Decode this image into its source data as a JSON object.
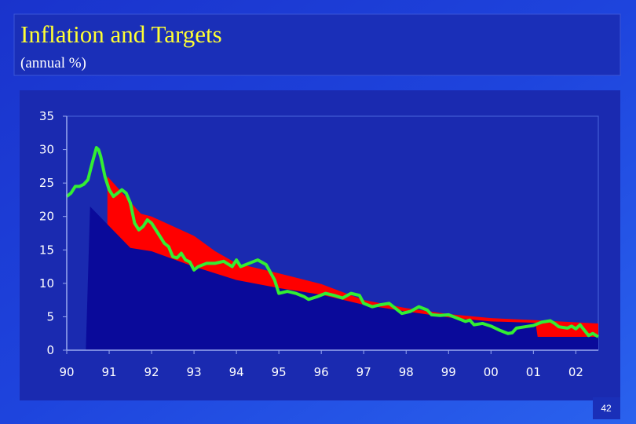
{
  "page_number": "42",
  "chart_data": {
    "type": "line",
    "title": "Inflation and Targets",
    "subtitle": "(annual %)",
    "xlim": [
      1990,
      2002.53
    ],
    "ylim": [
      0,
      35
    ],
    "xticks": [
      {
        "value": 1990,
        "label": "90"
      },
      {
        "value": 1991,
        "label": "91"
      },
      {
        "value": 1992,
        "label": "92"
      },
      {
        "value": 1993,
        "label": "93"
      },
      {
        "value": 1994,
        "label": "94"
      },
      {
        "value": 1995,
        "label": "95"
      },
      {
        "value": 1996,
        "label": "96"
      },
      {
        "value": 1997,
        "label": "97"
      },
      {
        "value": 1998,
        "label": "98"
      },
      {
        "value": 1999,
        "label": "99"
      },
      {
        "value": 2000,
        "label": "00"
      },
      {
        "value": 2001,
        "label": "01"
      },
      {
        "value": 2002,
        "label": "02"
      }
    ],
    "yticks": [
      0,
      5,
      10,
      15,
      20,
      25,
      30,
      35
    ],
    "series": [
      {
        "style": "area",
        "color": "#ff0000",
        "x": [
          1990.95,
          1990.96,
          1991.75,
          1992,
          1993,
          1993.5,
          1994,
          1995,
          1996,
          1997,
          1998,
          1999,
          2000,
          2001,
          2002.53
        ],
        "values": [
          0,
          26,
          20.4,
          20,
          17.1,
          14.8,
          13,
          11.5,
          9.9,
          7.5,
          6.3,
          5.4,
          4.8,
          4.5,
          4
        ]
      },
      {
        "style": "area",
        "color": "#0a0a9a",
        "x": [
          1990.45,
          1990.55,
          1991.5,
          1992,
          1993,
          1994,
          1995,
          1996,
          1997,
          1998,
          1999,
          2000,
          2001.05,
          2001.1,
          2002.53
        ],
        "values": [
          0,
          21.5,
          15.3,
          14.8,
          12.5,
          10.5,
          9.3,
          8.3,
          6.8,
          5.8,
          4.9,
          4.3,
          4.1,
          2,
          2
        ]
      },
      {
        "style": "line",
        "color": "#33ee33",
        "x": [
          1990.0,
          1990.1,
          1990.2,
          1990.3,
          1990.4,
          1990.5,
          1990.6,
          1990.7,
          1990.75,
          1990.8,
          1990.9,
          1991.0,
          1991.1,
          1991.2,
          1991.3,
          1991.4,
          1991.5,
          1991.6,
          1991.7,
          1991.8,
          1991.9,
          1992.0,
          1992.1,
          1992.2,
          1992.3,
          1992.4,
          1992.5,
          1992.6,
          1992.7,
          1992.8,
          1992.9,
          1993.0,
          1993.1,
          1993.3,
          1993.5,
          1993.7,
          1993.9,
          1994.0,
          1994.1,
          1994.3,
          1994.5,
          1994.7,
          1994.9,
          1995.0,
          1995.2,
          1995.4,
          1995.6,
          1995.7,
          1995.9,
          1996.1,
          1996.3,
          1996.5,
          1996.7,
          1996.9,
          1997.0,
          1997.2,
          1997.4,
          1997.6,
          1997.8,
          1997.9,
          1998.1,
          1998.3,
          1998.5,
          1998.6,
          1998.8,
          1999.0,
          1999.2,
          1999.4,
          1999.5,
          1999.6,
          1999.8,
          2000.0,
          2000.2,
          2000.4,
          2000.5,
          2000.6,
          2000.8,
          2001.0,
          2001.2,
          2001.4,
          2001.5,
          2001.6,
          2001.8,
          2001.9,
          2002.0,
          2002.1,
          2002.2,
          2002.3,
          2002.4,
          2002.53
        ],
        "values": [
          23,
          23.5,
          24.5,
          24.5,
          24.8,
          25.5,
          28,
          30.3,
          30,
          29,
          26,
          24,
          23,
          23.5,
          24,
          23.5,
          22,
          19,
          18,
          18.5,
          19.5,
          19,
          18,
          17,
          16,
          15.5,
          14,
          13.8,
          14.5,
          13.5,
          13.2,
          12,
          12.5,
          13,
          13,
          13.3,
          12.5,
          13.5,
          12.5,
          13,
          13.5,
          12.8,
          10.5,
          8.5,
          8.8,
          8.5,
          8,
          7.6,
          8,
          8.5,
          8.2,
          7.8,
          8.5,
          8.2,
          7,
          6.5,
          6.8,
          7,
          6,
          5.5,
          5.8,
          6.5,
          6,
          5.3,
          5.2,
          5.3,
          4.8,
          4.3,
          4.5,
          3.8,
          4,
          3.6,
          3,
          2.5,
          2.6,
          3.3,
          3.5,
          3.7,
          4.2,
          4.4,
          4,
          3.5,
          3.3,
          3.6,
          3.2,
          3.8,
          3,
          2.2,
          2.5,
          2.0
        ]
      }
    ]
  }
}
